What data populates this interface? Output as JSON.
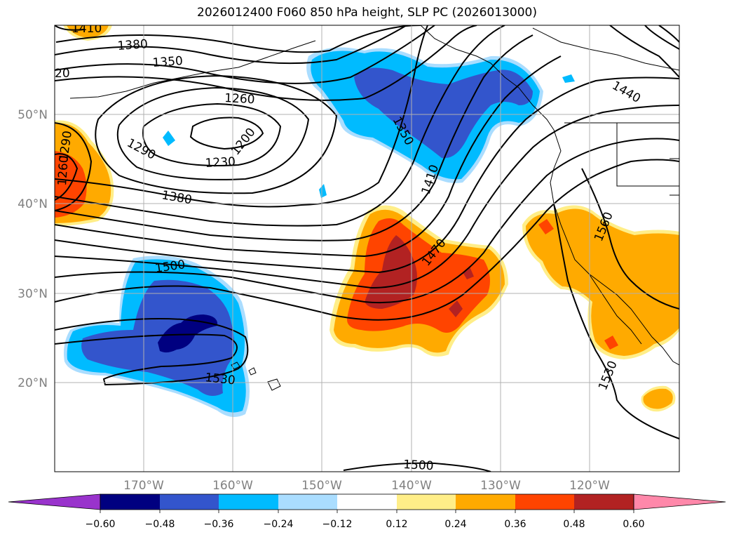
{
  "title": "2026012400 F060 850 hPa height, SLP PC (2026013000)",
  "latitude_labels": [
    "50°N",
    "40°N",
    "30°N",
    "20°N"
  ],
  "longitude_labels": [
    "170°W",
    "160°W",
    "150°W",
    "140°W",
    "130°W",
    "120°W"
  ],
  "contour_labels": [
    "1410",
    "1380",
    "1350",
    "20",
    "1260",
    "1200",
    "1290",
    "1230",
    "1380",
    "1290",
    "1260",
    "1350",
    "1410",
    "1470",
    "1440",
    "1560",
    "1500",
    "1530",
    "1530",
    "1500"
  ],
  "colorbar": {
    "tick_labels": [
      "−0.60",
      "−0.48",
      "−0.36",
      "−0.24",
      "−0.12",
      "0.12",
      "0.24",
      "0.36",
      "0.48",
      "0.60"
    ],
    "colors": [
      "#9933cc",
      "#000080",
      "#3355cc",
      "#00bbff",
      "#aaddff",
      "#ffffff",
      "#ffee88",
      "#ffaa00",
      "#ff4400",
      "#b22222",
      "#ff88aa"
    ]
  },
  "shading_colors": {
    "neg_light": "#aaddff",
    "neg_mid": "#00bbff",
    "neg_strong": "#3355cc",
    "neg_extreme": "#000080",
    "pos_light": "#ffee88",
    "pos_mid": "#ffaa00",
    "pos_strong": "#ff4400",
    "pos_extreme": "#b22222"
  }
}
